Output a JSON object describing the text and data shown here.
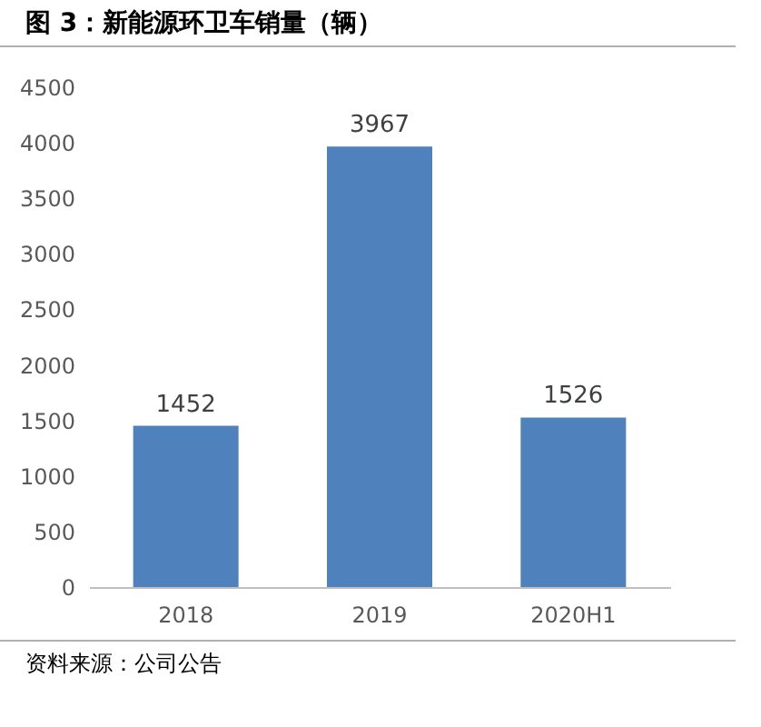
{
  "chart_data": {
    "type": "bar",
    "title": "图 3：新能源环卫车销量（辆）",
    "categories": [
      "2018",
      "2019",
      "2020H1"
    ],
    "values": [
      1452,
      3967,
      1526
    ],
    "color": "#4f81bd",
    "ylim": [
      0,
      4500
    ],
    "yticks": [
      0,
      500,
      1000,
      1500,
      2000,
      2500,
      3000,
      3500,
      4000,
      4500
    ],
    "grid": false,
    "data_labels": true,
    "annotations": [
      "资料来源：公司公告"
    ]
  }
}
